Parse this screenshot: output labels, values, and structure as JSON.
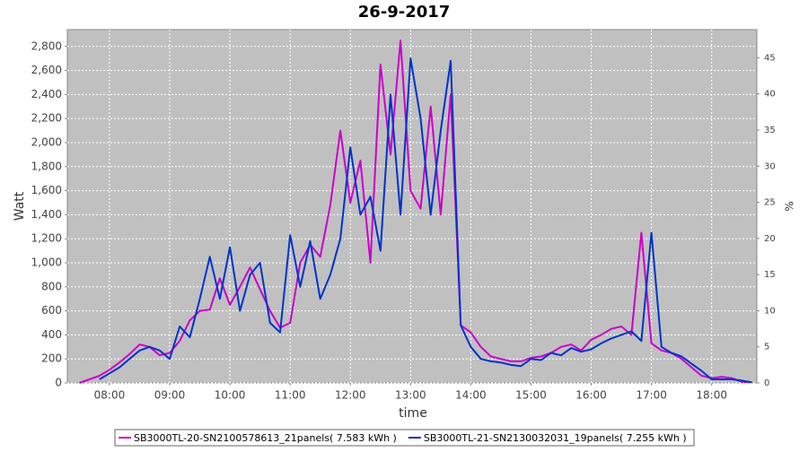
{
  "chart_data": {
    "type": "line",
    "title": "26-9-2017",
    "xlabel": "time",
    "ylabel": "Watt",
    "y2label": "%",
    "x": [
      "07:30",
      "07:40",
      "07:50",
      "08:00",
      "08:10",
      "08:20",
      "08:30",
      "08:40",
      "08:50",
      "09:00",
      "09:10",
      "09:20",
      "09:30",
      "09:40",
      "09:50",
      "10:00",
      "10:10",
      "10:20",
      "10:30",
      "10:40",
      "10:50",
      "11:00",
      "11:10",
      "11:20",
      "11:30",
      "11:40",
      "11:50",
      "12:00",
      "12:10",
      "12:20",
      "12:30",
      "12:40",
      "12:50",
      "13:00",
      "13:10",
      "13:20",
      "13:30",
      "13:40",
      "13:50",
      "14:00",
      "14:10",
      "14:20",
      "14:30",
      "14:40",
      "14:50",
      "15:00",
      "15:10",
      "15:20",
      "15:30",
      "15:40",
      "15:50",
      "16:00",
      "16:10",
      "16:20",
      "16:30",
      "16:40",
      "16:50",
      "17:00",
      "17:10",
      "17:20",
      "17:30",
      "17:40",
      "17:50",
      "18:00",
      "18:10",
      "18:20",
      "18:30",
      "18:40"
    ],
    "series": [
      {
        "name": "SB3000TL-20-SN2100578613_21panels( 7.583 kWh )",
        "color": "#cc00cc",
        "values": [
          0,
          30,
          60,
          110,
          170,
          240,
          320,
          300,
          230,
          250,
          350,
          520,
          600,
          610,
          870,
          650,
          800,
          960,
          780,
          600,
          460,
          500,
          1000,
          1150,
          1050,
          1480,
          2100,
          1500,
          1850,
          1000,
          2650,
          1900,
          2850,
          1600,
          1450,
          2300,
          1400,
          2400,
          480,
          420,
          300,
          220,
          200,
          180,
          180,
          210,
          220,
          250,
          300,
          320,
          270,
          360,
          400,
          450,
          470,
          400,
          1250,
          330,
          270,
          250,
          200,
          130,
          60,
          40,
          50,
          40,
          10,
          5
        ]
      },
      {
        "name": "SB3000TL-21-SN2130032031_19panels( 7.255 kWh )",
        "color": "#0033cc",
        "values": [
          null,
          null,
          30,
          80,
          130,
          200,
          270,
          300,
          270,
          200,
          470,
          380,
          700,
          1050,
          700,
          1130,
          600,
          900,
          1000,
          500,
          420,
          1230,
          800,
          1180,
          700,
          900,
          1200,
          1960,
          1400,
          1550,
          1100,
          2400,
          1400,
          2700,
          2200,
          1400,
          2100,
          2680,
          480,
          300,
          200,
          180,
          170,
          150,
          140,
          200,
          190,
          250,
          230,
          290,
          260,
          280,
          330,
          370,
          400,
          430,
          350,
          1250,
          300,
          250,
          220,
          160,
          100,
          30,
          30,
          30,
          20,
          5
        ]
      }
    ],
    "xlim": [
      "07:18",
      "18:45"
    ],
    "xticks": [
      "08:00",
      "09:00",
      "10:00",
      "11:00",
      "12:00",
      "13:00",
      "14:00",
      "15:00",
      "16:00",
      "17:00",
      "18:00"
    ],
    "ylim": [
      0,
      2940
    ],
    "yticks": [
      0,
      200,
      400,
      600,
      800,
      {
        "value": 1000,
        "label": "1,000"
      },
      {
        "value": 1200,
        "label": "1,200"
      },
      {
        "value": 1400,
        "label": "1,400"
      },
      {
        "value": 1600,
        "label": "1,600"
      },
      {
        "value": 1800,
        "label": "1,800"
      },
      {
        "value": 2000,
        "label": "2,000"
      },
      {
        "value": 2200,
        "label": "2,200"
      },
      {
        "value": 2400,
        "label": "2,400"
      },
      {
        "value": 2600,
        "label": "2,600"
      },
      {
        "value": 2800,
        "label": "2,800"
      }
    ],
    "y2lim": [
      0,
      48.9
    ],
    "y2ticks": [
      0,
      5,
      10,
      15,
      20,
      25,
      30,
      35,
      40,
      45
    ],
    "grid": true,
    "legend": "bottom"
  }
}
